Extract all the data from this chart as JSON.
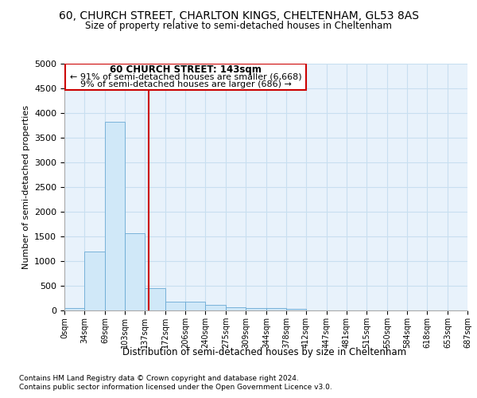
{
  "title1": "60, CHURCH STREET, CHARLTON KINGS, CHELTENHAM, GL53 8AS",
  "title2": "Size of property relative to semi-detached houses in Cheltenham",
  "xlabel": "Distribution of semi-detached houses by size in Cheltenham",
  "ylabel": "Number of semi-detached properties",
  "footer1": "Contains HM Land Registry data © Crown copyright and database right 2024.",
  "footer2": "Contains public sector information licensed under the Open Government Licence v3.0.",
  "property_label": "60 CHURCH STREET: 143sqm",
  "pct_smaller": 91,
  "count_smaller": 6668,
  "pct_larger": 9,
  "count_larger": 686,
  "bin_edges": [
    0,
    34,
    69,
    103,
    137,
    172,
    206,
    240,
    275,
    309,
    344,
    378,
    412,
    447,
    481,
    515,
    550,
    584,
    618,
    653,
    687
  ],
  "bar_heights": [
    50,
    1200,
    3830,
    1560,
    450,
    185,
    175,
    105,
    65,
    55,
    50,
    30,
    0,
    0,
    0,
    0,
    0,
    0,
    0,
    0
  ],
  "bar_color": "#d0e8f8",
  "bar_edge_color": "#6aaad4",
  "vline_color": "#cc0000",
  "vline_x": 143,
  "annotation_box_color": "#cc0000",
  "ylim": [
    0,
    5000
  ],
  "yticks": [
    0,
    500,
    1000,
    1500,
    2000,
    2500,
    3000,
    3500,
    4000,
    4500,
    5000
  ],
  "grid_color": "#c8dff0",
  "bg_color": "#e8f2fb"
}
